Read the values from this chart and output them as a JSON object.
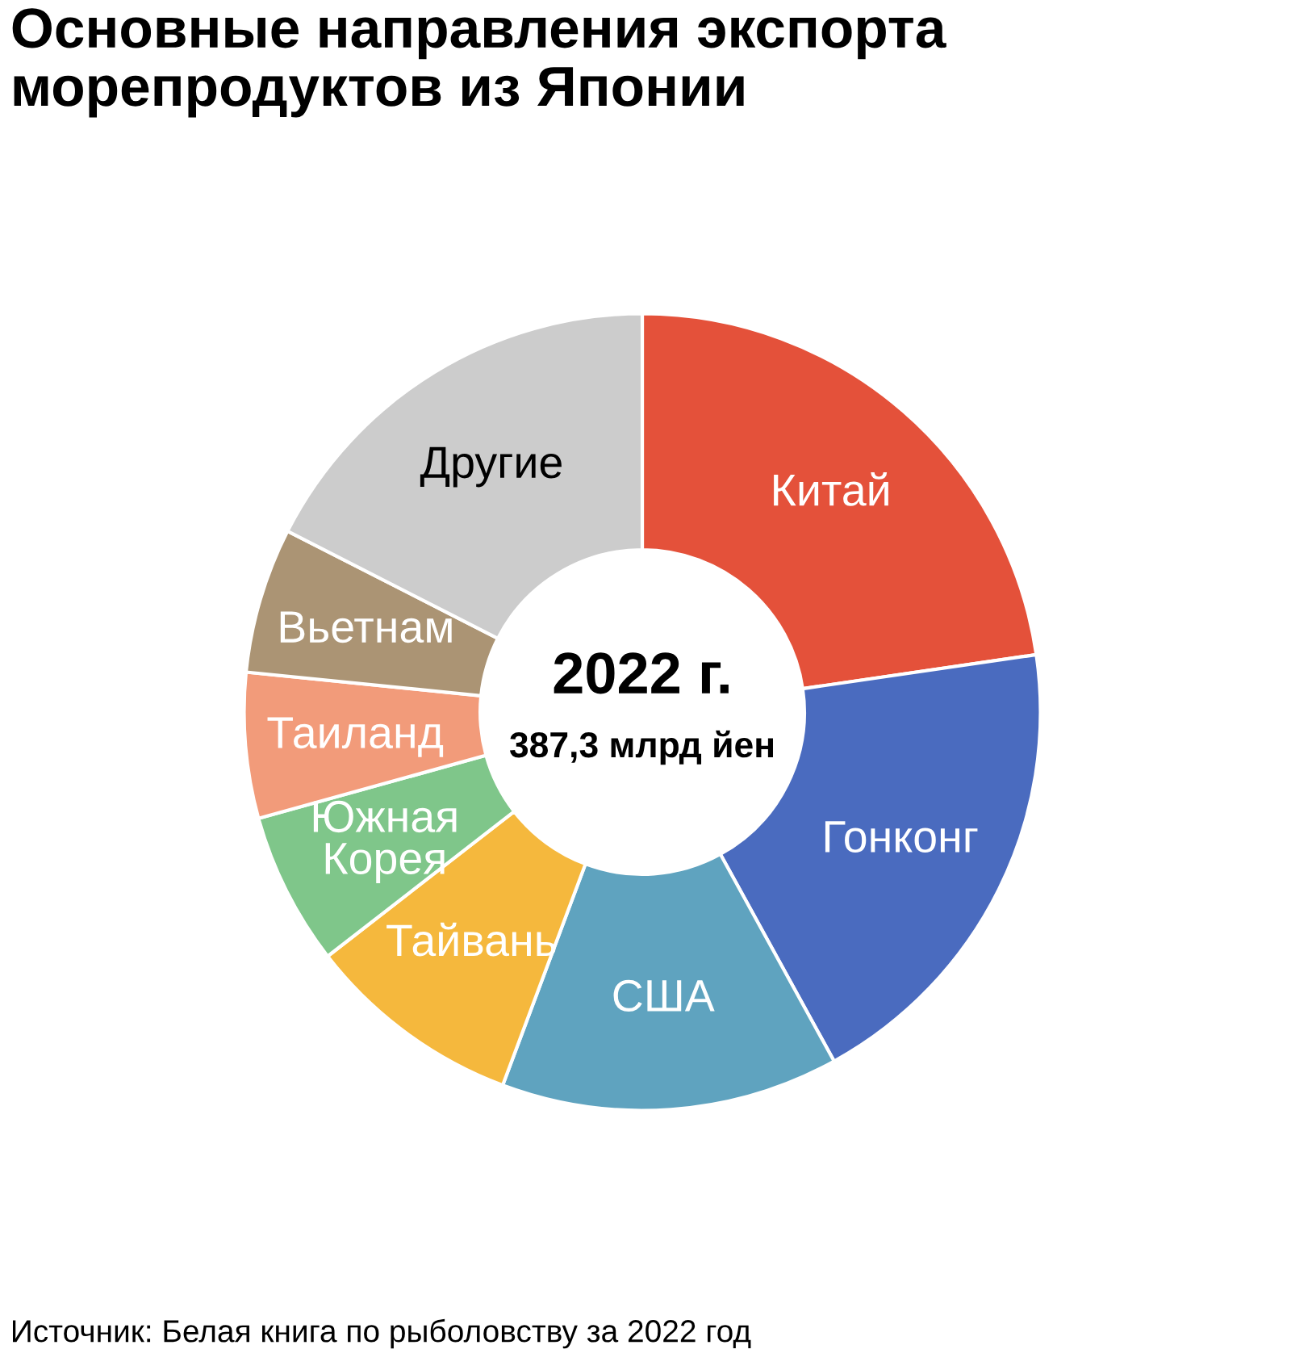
{
  "chart_data": {
    "type": "donut",
    "title": "Основные направления экспорта морепродуктов из Японии",
    "categories": [
      "Китай",
      "Гонконг",
      "США",
      "Тайвань",
      "Южная Корея",
      "Таиланд",
      "Вьетнам",
      "Другие"
    ],
    "values": [
      22.7,
      19.3,
      13.7,
      8.8,
      6.2,
      5.9,
      5.9,
      17.5
    ],
    "colors": [
      "#e4513a",
      "#4a6bbf",
      "#5fa3bf",
      "#f5b83d",
      "#7fc68a",
      "#f29b7a",
      "#ab9474",
      "#cccccc"
    ],
    "annotations": [
      "2022 г.",
      "387,3 млрд йен",
      "Источник: Белая книга по рыболовству за 2022 год"
    ]
  }
}
